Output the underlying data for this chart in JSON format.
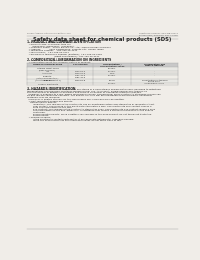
{
  "bg_color": "#f0ede8",
  "title": "Safety data sheet for chemical products (SDS)",
  "header_left": "Product Name: Lithium Ion Battery Cell",
  "header_right_line1": "Substance number: SDS-MB-00010",
  "header_right_line2": "Established / Revision: Dec.7.2016",
  "section1_title": "1. PRODUCT AND COMPANY IDENTIFICATION",
  "section1_lines": [
    "  • Product name: Lithium Ion Battery Cell",
    "  • Product code: Cylindrical-type cell",
    "       INR18650J, INR18650L, INR18650A",
    "  • Company name:   Sanyo Electric Co., Ltd., Mobile Energy Company",
    "  • Address:           2001 Kamikosaka, Sumoto-City, Hyogo, Japan",
    "  • Telephone number:   +81-799-26-4111",
    "  • Fax number:   +81-799-26-4121",
    "  • Emergency telephone number (daytime): +81-799-26-3962",
    "                                    (Night and holiday): +81-799-26-3121"
  ],
  "section2_title": "2. COMPOSITION / INFORMATION ON INGREDIENTS",
  "section2_intro": "  • Substance or preparation: Preparation",
  "section2_sub": "  • Information about the chemical nature of product:",
  "table_col_headers": [
    "Common chemical name",
    "CAS number",
    "Concentration /\nConcentration range",
    "Classification and\nhazard labeling"
  ],
  "table_rows": [
    [
      "Lithium cobalt oxide\n(LiMn-Co-PbO4)",
      "-",
      "30-60%",
      "-"
    ],
    [
      "Iron",
      "7439-89-6",
      "10-20%",
      "-"
    ],
    [
      "Aluminum",
      "7429-90-5",
      "2-6%",
      "-"
    ],
    [
      "Graphite\n(listed as graphite-1)\n(All listed as graphite-1)",
      "7782-42-5\n7782-42-5",
      "10-25%",
      "-"
    ],
    [
      "Copper",
      "7440-50-8",
      "5-15%",
      "Sensitization of the skin\ngroup No.2"
    ],
    [
      "Organic electrolyte",
      "-",
      "10-20%",
      "Inflammable liquid"
    ]
  ],
  "section3_title": "3. HAZARDS IDENTIFICATION",
  "section3_para": [
    "For the battery cell, chemical substances are stored in a hermetically sealed metal case, designed to withstand",
    "temperatures and pressure variations during normal use. As a result, during normal use, there is no",
    "physical danger of ignition or explosion and there is no danger of hazardous materials leakage.",
    "  However, if exposed to a fire, added mechanical shocks, decomposed, when electrolyte otherwise misuse can",
    "be gas release cannot be operated. The battery cell also will be threatened of fire-problems, hazardous",
    "materials may be released.",
    "  Moreover, if heated strongly by the surrounding fire, some gas may be emitted."
  ],
  "section3_bullet1": "  • Most important hazard and effects:",
  "section3_sub1": "    Human health effects:",
  "section3_human": [
    "        Inhalation: The release of the electrolyte has an anesthesia action and stimulates in respiratory tract.",
    "        Skin contact: The release of the electrolyte stimulates a skin. The electrolyte skin contact causes a",
    "        sore and stimulation on the skin.",
    "        Eye contact: The release of the electrolyte stimulates eyes. The electrolyte eye contact causes a sore",
    "        and stimulation on the eye. Especially, a substance that causes a strong inflammation of the eyes is",
    "        contained.",
    "        Environmental effects: Since a battery cell remains in the environment, do not throw out it into the",
    "        environment."
  ],
  "section3_bullet2": "  • Specific hazards:",
  "section3_specific": [
    "        If the electrolyte contacts with water, it will generate detrimental hydrogen fluoride.",
    "        Since the used electrolyte is inflammable liquid, do not bring close to fire."
  ],
  "table_header_bg": "#c8c8c8",
  "table_row_bg1": "#e8e8e4",
  "table_row_bg2": "#f0eee8",
  "line_color": "#aaaaaa",
  "text_color": "#222222",
  "header_text_color": "#666666"
}
